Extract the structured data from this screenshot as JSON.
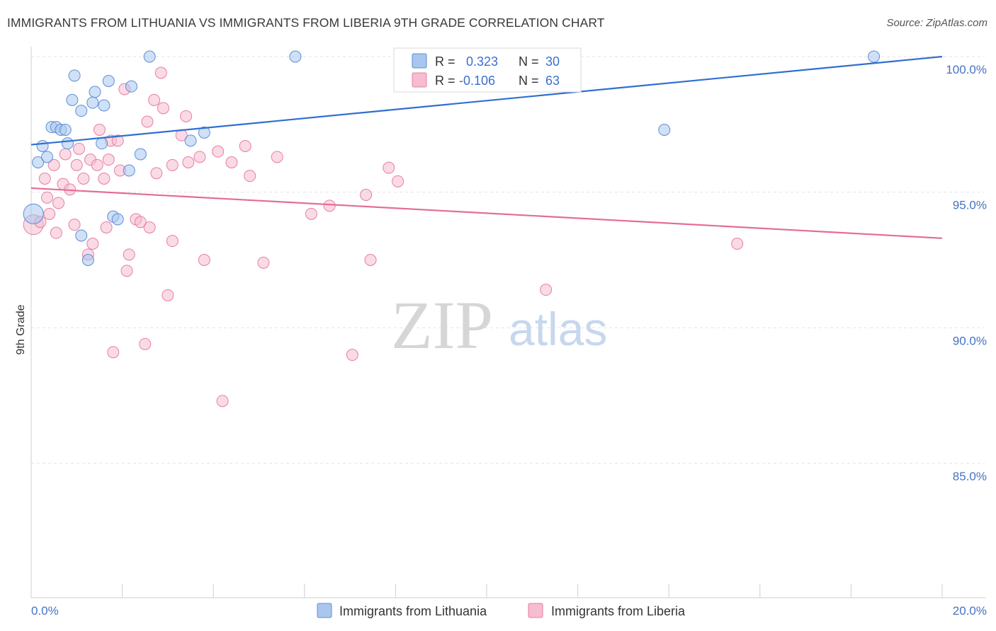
{
  "title": "IMMIGRANTS FROM LITHUANIA VS IMMIGRANTS FROM LIBERIA 9TH GRADE CORRELATION CHART",
  "source": "Source: ZipAtlas.com",
  "watermark": {
    "zip": "ZIP",
    "atlas": "atlas"
  },
  "colors": {
    "blue_fill": "#a9c6ee",
    "blue_stroke": "#5b8fd6",
    "blue_line": "#2f6fd0",
    "pink_fill": "#f6bcd0",
    "pink_stroke": "#e57fa3",
    "pink_line": "#e46c96",
    "axis_text": "#4472c4",
    "grid": "#e3e3e3"
  },
  "legend": {
    "rows": [
      {
        "r_label": "R =",
        "r_value": "0.323",
        "n_label": "N =",
        "n_value": "30"
      },
      {
        "r_label": "R =",
        "r_value": "-0.106",
        "n_label": "N =",
        "n_value": "63"
      }
    ]
  },
  "chart_data": {
    "type": "scatter",
    "title": "IMMIGRANTS FROM LITHUANIA VS IMMIGRANTS FROM LIBERIA 9TH GRADE CORRELATION CHART",
    "xlabel": "",
    "ylabel": "9th Grade",
    "xlim": [
      0,
      20
    ],
    "ylim": [
      80.0,
      100.8
    ],
    "x_tick_labels": [
      "0.0%",
      "20.0%"
    ],
    "y_ticks": [
      85.0,
      90.0,
      95.0,
      100.0
    ],
    "y_tick_labels": [
      "85.0%",
      "90.0%",
      "95.0%",
      "100.0%"
    ],
    "grid": true,
    "series": [
      {
        "name": "Immigrants from Lithuania",
        "r": 0.323,
        "n": 30,
        "trend": [
          [
            0,
            96.75
          ],
          [
            20,
            100.0
          ]
        ],
        "points": [
          [
            0.05,
            94.2,
            14
          ],
          [
            0.15,
            96.1,
            8
          ],
          [
            0.25,
            96.7,
            8
          ],
          [
            0.35,
            96.3,
            8
          ],
          [
            0.45,
            97.4,
            8
          ],
          [
            0.55,
            97.4,
            8
          ],
          [
            0.65,
            97.3,
            8
          ],
          [
            0.75,
            97.3,
            8
          ],
          [
            0.8,
            96.8,
            8
          ],
          [
            0.9,
            98.4,
            8
          ],
          [
            0.95,
            99.3,
            8
          ],
          [
            1.1,
            98.0,
            8
          ],
          [
            1.1,
            93.4,
            8
          ],
          [
            1.25,
            92.5,
            8
          ],
          [
            1.35,
            98.3,
            8
          ],
          [
            1.4,
            98.7,
            8
          ],
          [
            1.55,
            96.8,
            8
          ],
          [
            1.6,
            98.2,
            8
          ],
          [
            1.7,
            99.1,
            8
          ],
          [
            1.8,
            94.1,
            8
          ],
          [
            1.9,
            94.0,
            8
          ],
          [
            2.15,
            95.8,
            8
          ],
          [
            2.2,
            98.9,
            8
          ],
          [
            2.4,
            96.4,
            8
          ],
          [
            2.6,
            100.0,
            8
          ],
          [
            3.5,
            96.9,
            8
          ],
          [
            3.8,
            97.2,
            8
          ],
          [
            5.8,
            100.0,
            8
          ],
          [
            13.9,
            97.3,
            8
          ],
          [
            18.5,
            100.0,
            8
          ]
        ]
      },
      {
        "name": "Immigrants from Liberia",
        "r": -0.106,
        "n": 63,
        "trend": [
          [
            0,
            95.15
          ],
          [
            20,
            93.3
          ]
        ],
        "points": [
          [
            0.05,
            93.8,
            14
          ],
          [
            0.2,
            93.9,
            8
          ],
          [
            0.3,
            95.5,
            8
          ],
          [
            0.35,
            94.8,
            8
          ],
          [
            0.4,
            94.2,
            8
          ],
          [
            0.5,
            96.0,
            8
          ],
          [
            0.55,
            93.5,
            8
          ],
          [
            0.6,
            94.6,
            8
          ],
          [
            0.7,
            95.3,
            8
          ],
          [
            0.75,
            96.4,
            8
          ],
          [
            0.85,
            95.1,
            8
          ],
          [
            0.95,
            93.8,
            8
          ],
          [
            1.0,
            96.0,
            8
          ],
          [
            1.05,
            96.6,
            8
          ],
          [
            1.15,
            95.5,
            8
          ],
          [
            1.25,
            92.7,
            8
          ],
          [
            1.3,
            96.2,
            8
          ],
          [
            1.35,
            93.1,
            8
          ],
          [
            1.45,
            96.0,
            8
          ],
          [
            1.5,
            97.3,
            8
          ],
          [
            1.6,
            95.5,
            8
          ],
          [
            1.65,
            93.7,
            8
          ],
          [
            1.7,
            96.2,
            8
          ],
          [
            1.75,
            96.9,
            8
          ],
          [
            1.8,
            89.1,
            8
          ],
          [
            1.9,
            96.9,
            8
          ],
          [
            1.95,
            95.8,
            8
          ],
          [
            2.05,
            98.8,
            8
          ],
          [
            2.1,
            92.1,
            8
          ],
          [
            2.15,
            92.7,
            8
          ],
          [
            2.3,
            94.0,
            8
          ],
          [
            2.4,
            93.9,
            8
          ],
          [
            2.5,
            89.4,
            8
          ],
          [
            2.55,
            97.6,
            8
          ],
          [
            2.6,
            93.7,
            8
          ],
          [
            2.7,
            98.4,
            8
          ],
          [
            2.75,
            95.7,
            8
          ],
          [
            2.85,
            99.4,
            8
          ],
          [
            2.9,
            98.1,
            8
          ],
          [
            3.0,
            91.2,
            8
          ],
          [
            3.1,
            93.2,
            8
          ],
          [
            3.1,
            96.0,
            8
          ],
          [
            3.3,
            97.1,
            8
          ],
          [
            3.4,
            97.8,
            8
          ],
          [
            3.45,
            96.1,
            8
          ],
          [
            3.7,
            96.3,
            8
          ],
          [
            3.8,
            92.5,
            8
          ],
          [
            4.1,
            96.5,
            8
          ],
          [
            4.2,
            87.3,
            8
          ],
          [
            4.4,
            96.1,
            8
          ],
          [
            4.7,
            96.7,
            8
          ],
          [
            4.8,
            95.6,
            8
          ],
          [
            5.1,
            92.4,
            8
          ],
          [
            5.4,
            96.3,
            8
          ],
          [
            6.15,
            94.2,
            8
          ],
          [
            6.55,
            94.5,
            8
          ],
          [
            7.05,
            89.0,
            8
          ],
          [
            7.35,
            94.9,
            8
          ],
          [
            7.45,
            92.5,
            8
          ],
          [
            7.85,
            95.9,
            8
          ],
          [
            8.05,
            95.4,
            8
          ],
          [
            11.3,
            91.4,
            8
          ],
          [
            15.5,
            93.1,
            8
          ]
        ]
      }
    ]
  }
}
